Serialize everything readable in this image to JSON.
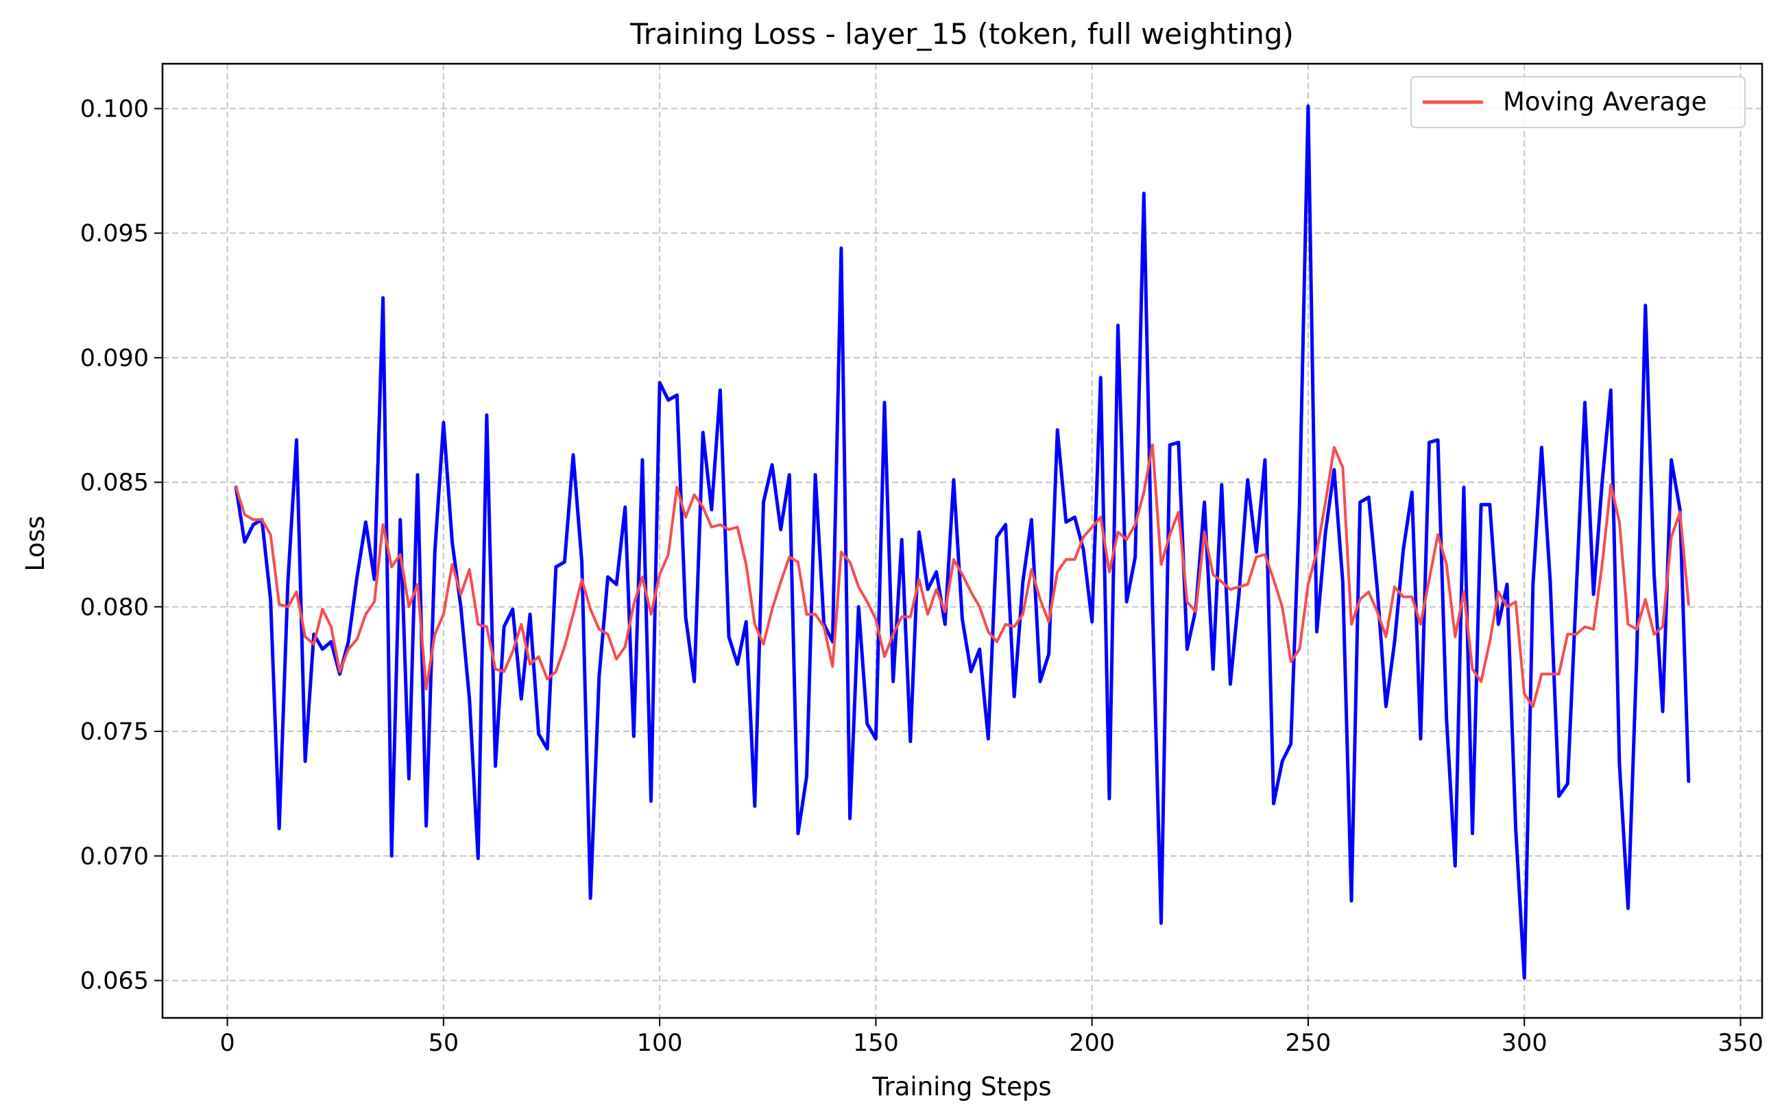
{
  "chart_data": {
    "type": "line",
    "title": "Training Loss - layer_15 (token, full weighting)",
    "xlabel": "Training Steps",
    "ylabel": "Loss",
    "xlim": [
      -15,
      355
    ],
    "ylim": [
      0.0635,
      0.1018
    ],
    "xticks": [
      0,
      50,
      100,
      150,
      200,
      250,
      300,
      350
    ],
    "xtick_labels": [
      "0",
      "50",
      "100",
      "150",
      "200",
      "250",
      "300",
      "350"
    ],
    "yticks": [
      0.065,
      0.07,
      0.075,
      0.08,
      0.085,
      0.09,
      0.095,
      0.1
    ],
    "ytick_labels": [
      "0.065",
      "0.070",
      "0.075",
      "0.080",
      "0.085",
      "0.090",
      "0.095",
      "0.100"
    ],
    "grid": true,
    "legend_position": "upper-right",
    "colors": {
      "loss": "#0000ff",
      "moving_average": "#f44f4f"
    },
    "x": [
      2,
      4,
      6,
      8,
      10,
      12,
      14,
      16,
      18,
      20,
      22,
      24,
      26,
      28,
      30,
      32,
      34,
      36,
      38,
      40,
      42,
      44,
      46,
      48,
      50,
      52,
      54,
      56,
      58,
      60,
      62,
      64,
      66,
      68,
      70,
      72,
      74,
      76,
      78,
      80,
      82,
      84,
      86,
      88,
      90,
      92,
      94,
      96,
      98,
      100,
      102,
      104,
      106,
      108,
      110,
      112,
      114,
      116,
      118,
      120,
      122,
      124,
      126,
      128,
      130,
      132,
      134,
      136,
      138,
      140,
      142,
      144,
      146,
      148,
      150,
      152,
      154,
      156,
      158,
      160,
      162,
      164,
      166,
      168,
      170,
      172,
      174,
      176,
      178,
      180,
      182,
      184,
      186,
      188,
      190,
      192,
      194,
      196,
      198,
      200,
      202,
      204,
      206,
      208,
      210,
      212,
      214,
      216,
      218,
      220,
      222,
      224,
      226,
      228,
      230,
      232,
      234,
      236,
      238,
      240,
      242,
      244,
      246,
      248,
      250,
      252,
      254,
      256,
      258,
      260,
      262,
      264,
      266,
      268,
      270,
      272,
      274,
      276,
      278,
      280,
      282,
      284,
      286,
      288,
      290,
      292,
      294,
      296,
      298,
      300,
      302,
      304,
      306,
      308,
      310,
      312,
      314,
      316,
      318,
      320,
      322,
      324,
      326,
      328,
      330,
      332,
      334,
      336,
      338
    ],
    "series": [
      {
        "values": [
          0.0848,
          0.0826,
          0.0833,
          0.0835,
          0.0803,
          0.0711,
          0.081,
          0.0867,
          0.0738,
          0.0789,
          0.0783,
          0.0786,
          0.0773,
          0.0786,
          0.0812,
          0.0834,
          0.0811,
          0.0924,
          0.07,
          0.0835,
          0.0731,
          0.0853,
          0.0712,
          0.0822,
          0.0874,
          0.0826,
          0.08,
          0.0763,
          0.0699,
          0.0877,
          0.0736,
          0.0792,
          0.0799,
          0.0763,
          0.0797,
          0.0749,
          0.0743,
          0.0816,
          0.0818,
          0.0861,
          0.0818,
          0.0683,
          0.0772,
          0.0812,
          0.0809,
          0.084,
          0.0748,
          0.0859,
          0.0722,
          0.089,
          0.0883,
          0.0885,
          0.0796,
          0.077,
          0.087,
          0.0839,
          0.0887,
          0.0788,
          0.0777,
          0.0794,
          0.072,
          0.0842,
          0.0857,
          0.0831,
          0.0853,
          0.0709,
          0.0732,
          0.0853,
          0.0793,
          0.0786,
          0.0944,
          0.0715,
          0.08,
          0.0753,
          0.0747,
          0.0882,
          0.077,
          0.0827,
          0.0746,
          0.083,
          0.0807,
          0.0814,
          0.0793,
          0.0851,
          0.0795,
          0.0774,
          0.0783,
          0.0747,
          0.0828,
          0.0833,
          0.0764,
          0.081,
          0.0835,
          0.077,
          0.0781,
          0.0871,
          0.0834,
          0.0836,
          0.0823,
          0.0794,
          0.0892,
          0.0723,
          0.0913,
          0.0802,
          0.082,
          0.0966,
          0.08,
          0.0673,
          0.0865,
          0.0866,
          0.0783,
          0.0799,
          0.0842,
          0.0775,
          0.0849,
          0.0769,
          0.0805,
          0.0851,
          0.0822,
          0.0859,
          0.0721,
          0.0738,
          0.0745,
          0.0841,
          0.1001,
          0.079,
          0.083,
          0.0855,
          0.081,
          0.0682,
          0.0842,
          0.0844,
          0.0807,
          0.076,
          0.0786,
          0.0823,
          0.0846,
          0.0747,
          0.0866,
          0.0867,
          0.0755,
          0.0696,
          0.0848,
          0.0709,
          0.0841,
          0.0841,
          0.0793,
          0.0809,
          0.0711,
          0.0651,
          0.0809,
          0.0864,
          0.081,
          0.0724,
          0.0729,
          0.0806,
          0.0882,
          0.0805,
          0.085,
          0.0887,
          0.0737,
          0.0679,
          0.078,
          0.0921,
          0.0813,
          0.0758,
          0.0859,
          0.0839,
          0.073
        ]
      },
      {
        "name": "Moving Average",
        "values": [
          0.0848,
          0.0837,
          0.0835,
          0.0835,
          0.0829,
          0.0801,
          0.08,
          0.0806,
          0.0788,
          0.0785,
          0.0799,
          0.0792,
          0.0774,
          0.0783,
          0.0787,
          0.0797,
          0.0802,
          0.0833,
          0.0816,
          0.0821,
          0.08,
          0.0809,
          0.0767,
          0.0789,
          0.0797,
          0.0817,
          0.0805,
          0.0815,
          0.0793,
          0.0792,
          0.0775,
          0.0774,
          0.0782,
          0.0793,
          0.0777,
          0.078,
          0.0771,
          0.0774,
          0.0784,
          0.0797,
          0.0811,
          0.0799,
          0.0791,
          0.0789,
          0.0779,
          0.0784,
          0.0801,
          0.0812,
          0.0797,
          0.0813,
          0.0821,
          0.0848,
          0.0836,
          0.0845,
          0.084,
          0.0832,
          0.0833,
          0.0831,
          0.0832,
          0.0817,
          0.0793,
          0.0785,
          0.0799,
          0.081,
          0.082,
          0.0818,
          0.0797,
          0.0797,
          0.0792,
          0.0776,
          0.0822,
          0.0818,
          0.0808,
          0.0802,
          0.0795,
          0.078,
          0.0789,
          0.0796,
          0.0796,
          0.0811,
          0.0797,
          0.0807,
          0.0798,
          0.0819,
          0.0813,
          0.0806,
          0.08,
          0.079,
          0.0786,
          0.0793,
          0.0792,
          0.0797,
          0.0815,
          0.0803,
          0.0794,
          0.0814,
          0.0819,
          0.0819,
          0.0828,
          0.0832,
          0.0836,
          0.0814,
          0.083,
          0.0827,
          0.0833,
          0.0846,
          0.0865,
          0.0817,
          0.0829,
          0.0838,
          0.0802,
          0.0798,
          0.083,
          0.0813,
          0.081,
          0.0807,
          0.0808,
          0.0809,
          0.082,
          0.0821,
          0.0811,
          0.08,
          0.0778,
          0.0783,
          0.0809,
          0.0822,
          0.0842,
          0.0864,
          0.0856,
          0.0793,
          0.0803,
          0.0806,
          0.0798,
          0.0788,
          0.0808,
          0.0804,
          0.0804,
          0.0793,
          0.0811,
          0.0829,
          0.0817,
          0.0788,
          0.0806,
          0.0775,
          0.077,
          0.0786,
          0.0806,
          0.08,
          0.0802,
          0.0765,
          0.076,
          0.0773,
          0.0773,
          0.0773,
          0.0789,
          0.0789,
          0.0792,
          0.0791,
          0.0817,
          0.0849,
          0.0834,
          0.0793,
          0.0791,
          0.0803,
          0.0789,
          0.0792,
          0.0828,
          0.0838,
          0.0801
        ]
      }
    ]
  }
}
